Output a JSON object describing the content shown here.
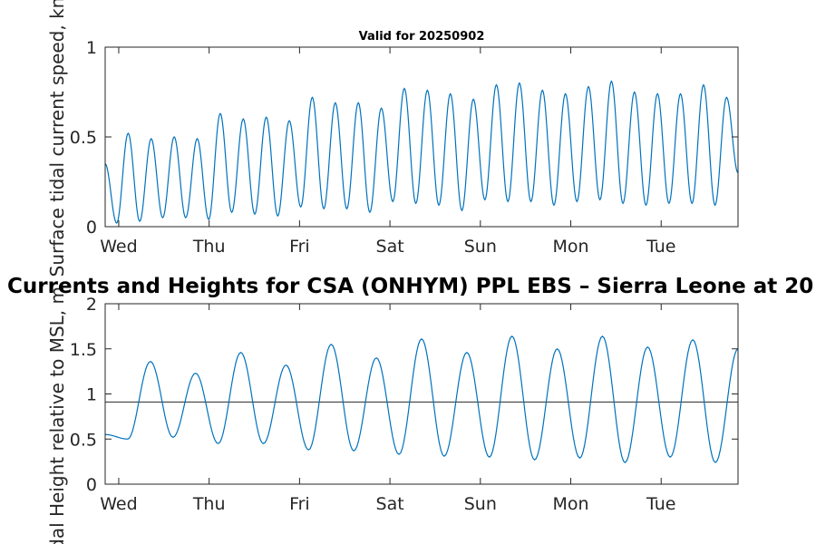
{
  "figure_title": "Currents and Heights for CSA (ONHYM) PPL EBS  – Sierra Leone at 20",
  "colors": {
    "series": "#0072BD",
    "reference": "#404040",
    "axis": "#262626",
    "background": "#ffffff"
  },
  "chart_data": [
    {
      "type": "line",
      "title": "Valid for 20250902",
      "xlabel": "",
      "ylabel": "Surface tidal current speed, kn",
      "ylim": [
        0,
        1
      ],
      "yticks": [
        0,
        0.5,
        1
      ],
      "ytick_labels": [
        "0",
        "0.5",
        "1"
      ],
      "xlim": [
        -0.15,
        6.85
      ],
      "xticks": [
        0,
        1,
        2,
        3,
        4,
        5,
        6
      ],
      "xtick_labels": [
        "Wed",
        "Thu",
        "Fri",
        "Sat",
        "Sun",
        "Mon",
        "Tue"
      ],
      "grid": false,
      "series": [
        {
          "name": "Surface tidal current speed",
          "peaks": [
            0.52,
            0.49,
            0.5,
            0.49,
            0.63,
            0.6,
            0.61,
            0.59,
            0.72,
            0.69,
            0.69,
            0.66,
            0.77,
            0.76,
            0.74,
            0.71,
            0.79,
            0.8,
            0.76,
            0.74,
            0.78,
            0.81,
            0.75,
            0.74,
            0.74,
            0.79,
            0.72
          ],
          "troughs": [
            0.02,
            0.03,
            0.05,
            0.05,
            0.04,
            0.08,
            0.07,
            0.06,
            0.11,
            0.1,
            0.1,
            0.08,
            0.14,
            0.13,
            0.12,
            0.09,
            0.15,
            0.14,
            0.14,
            0.12,
            0.14,
            0.15,
            0.13,
            0.12,
            0.13,
            0.13,
            0.12
          ],
          "start_value": 0.35,
          "end_value": 0.3
        }
      ]
    },
    {
      "type": "line",
      "title": "",
      "xlabel": "",
      "ylabel": "Tidal Height relative to MSL, m",
      "ylim": [
        0,
        2
      ],
      "yticks": [
        0,
        0.5,
        1,
        1.5,
        2
      ],
      "ytick_labels": [
        "0",
        "0.5",
        "1",
        "1.5",
        "2"
      ],
      "xlim": [
        -0.15,
        6.85
      ],
      "xticks": [
        0,
        1,
        2,
        3,
        4,
        5,
        6
      ],
      "xtick_labels": [
        "Wed",
        "Thu",
        "Fri",
        "Sat",
        "Sun",
        "Mon",
        "Tue"
      ],
      "grid": false,
      "reference_line": 0.91,
      "series": [
        {
          "name": "Tidal height",
          "highs": [
            1.36,
            1.23,
            1.46,
            1.32,
            1.55,
            1.4,
            1.61,
            1.46,
            1.64,
            1.5,
            1.64,
            1.52,
            1.6
          ],
          "lows": [
            0.5,
            0.52,
            0.45,
            0.45,
            0.38,
            0.37,
            0.33,
            0.31,
            0.3,
            0.27,
            0.29,
            0.24,
            0.3,
            0.24
          ],
          "start_value": 0.55,
          "end_value": 1.5
        }
      ]
    }
  ]
}
